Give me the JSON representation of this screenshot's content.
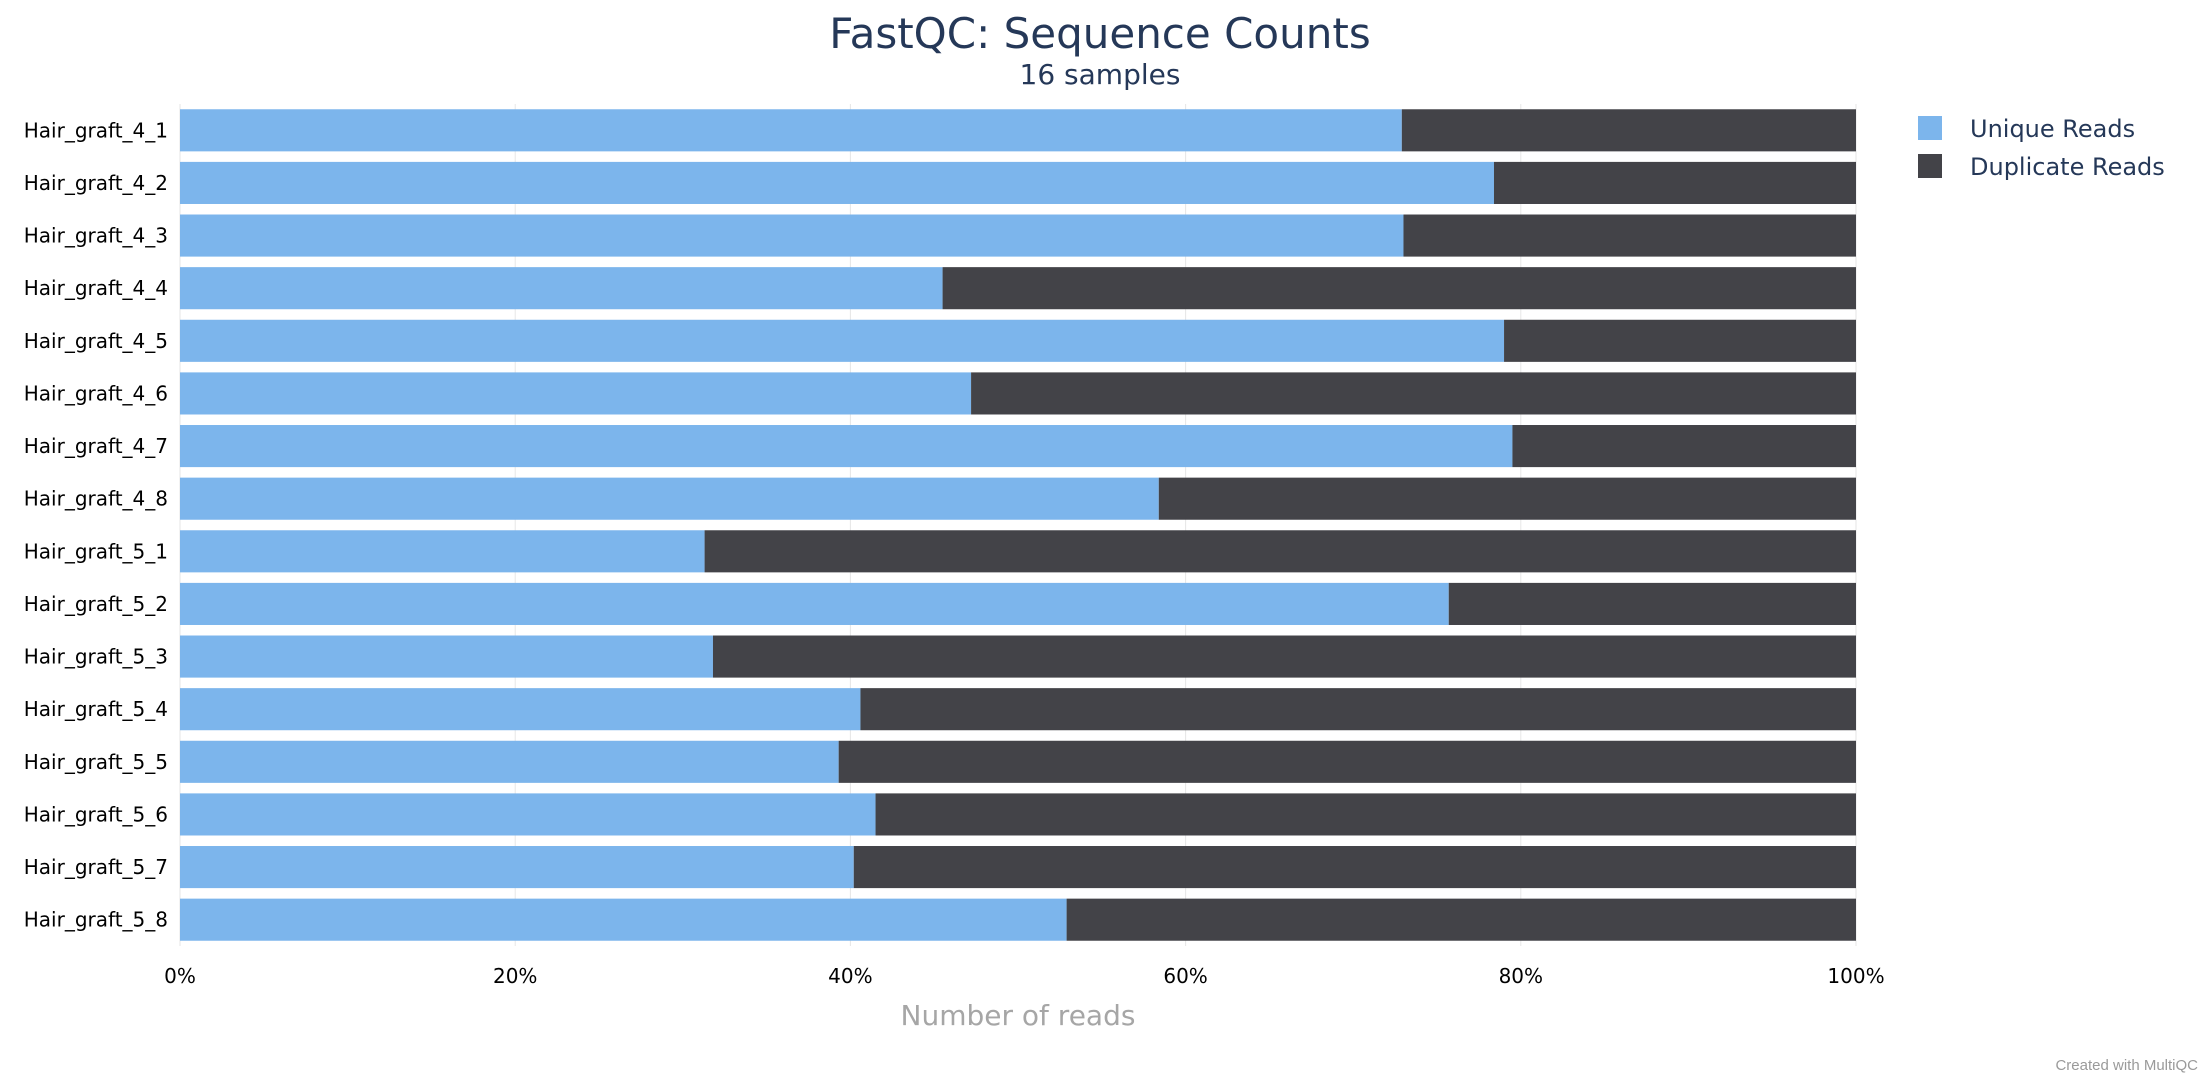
{
  "chart_data": {
    "type": "bar",
    "orientation": "horizontal",
    "stacked": true,
    "percent": true,
    "title": "FastQC: Sequence Counts",
    "subtitle": "16 samples",
    "xlabel": "Number of reads",
    "xlim": [
      0,
      100
    ],
    "x_ticks": [
      "0%",
      "20%",
      "40%",
      "60%",
      "80%",
      "100%"
    ],
    "grid": true,
    "legend_position": "top-right",
    "categories": [
      "Hair_graft_4_1",
      "Hair_graft_4_2",
      "Hair_graft_4_3",
      "Hair_graft_4_4",
      "Hair_graft_4_5",
      "Hair_graft_4_6",
      "Hair_graft_4_7",
      "Hair_graft_4_8",
      "Hair_graft_5_1",
      "Hair_graft_5_2",
      "Hair_graft_5_3",
      "Hair_graft_5_4",
      "Hair_graft_5_5",
      "Hair_graft_5_6",
      "Hair_graft_5_7",
      "Hair_graft_5_8"
    ],
    "series": [
      {
        "name": "Unique Reads",
        "color": "#7cb5ec",
        "values": [
          72.9,
          78.4,
          73.0,
          45.5,
          79.0,
          47.2,
          79.5,
          58.4,
          31.3,
          75.7,
          31.8,
          40.6,
          39.3,
          41.5,
          40.2,
          52.9
        ]
      },
      {
        "name": "Duplicate Reads",
        "color": "#434348",
        "values": [
          27.1,
          21.6,
          27.0,
          54.5,
          21.0,
          52.8,
          20.5,
          41.6,
          68.7,
          24.3,
          68.2,
          59.4,
          60.7,
          58.5,
          59.8,
          47.1
        ]
      }
    ]
  },
  "watermark": "Created with MultiQC"
}
